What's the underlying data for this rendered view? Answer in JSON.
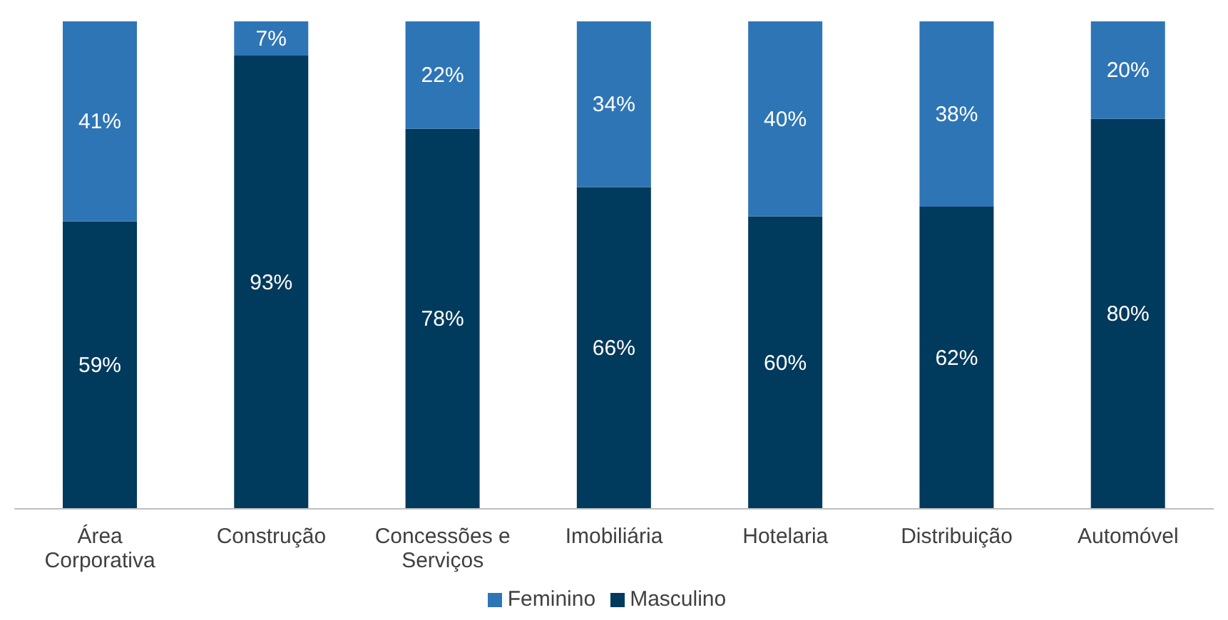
{
  "chart_data": {
    "type": "bar",
    "stacked": true,
    "categories": [
      "Área Corporativa",
      "Construção",
      "Concessões e Serviços",
      "Imobiliária",
      "Hotelaria",
      "Distribuição",
      "Automóvel"
    ],
    "series": [
      {
        "name": "Masculino",
        "color": "#003a5c",
        "values": [
          59,
          93,
          78,
          66,
          60,
          62,
          80
        ],
        "value_labels": [
          "59%",
          "93%",
          "78%",
          "66%",
          "60%",
          "62%",
          "80%"
        ]
      },
      {
        "name": "Feminino",
        "color": "#2e75b6",
        "values": [
          41,
          7,
          22,
          34,
          40,
          38,
          20
        ],
        "value_labels": [
          "41%",
          "7%",
          "22%",
          "34%",
          "40%",
          "38%",
          "20%"
        ]
      }
    ],
    "legend": "bottom",
    "grid": false
  }
}
